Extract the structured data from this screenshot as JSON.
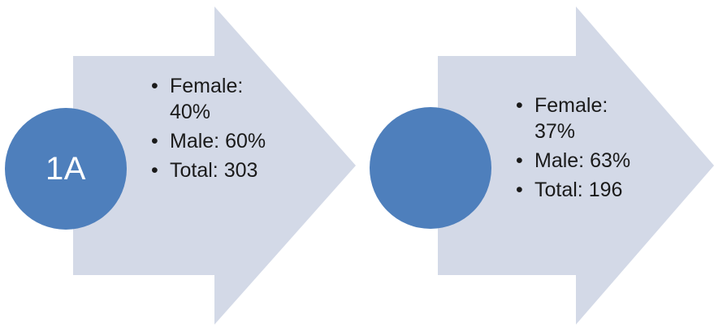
{
  "colors": {
    "arrow_fill": "#d3d9e7",
    "circle_fill": "#4e7fbc"
  },
  "group_1": {
    "circle_label": "1A",
    "items": [
      "Female: 40%",
      "Male: 60%",
      "Total: 303"
    ]
  },
  "group_2": {
    "circle_label": "",
    "items": [
      "Female: 37%",
      "Male: 63%",
      "Total: 196"
    ]
  }
}
